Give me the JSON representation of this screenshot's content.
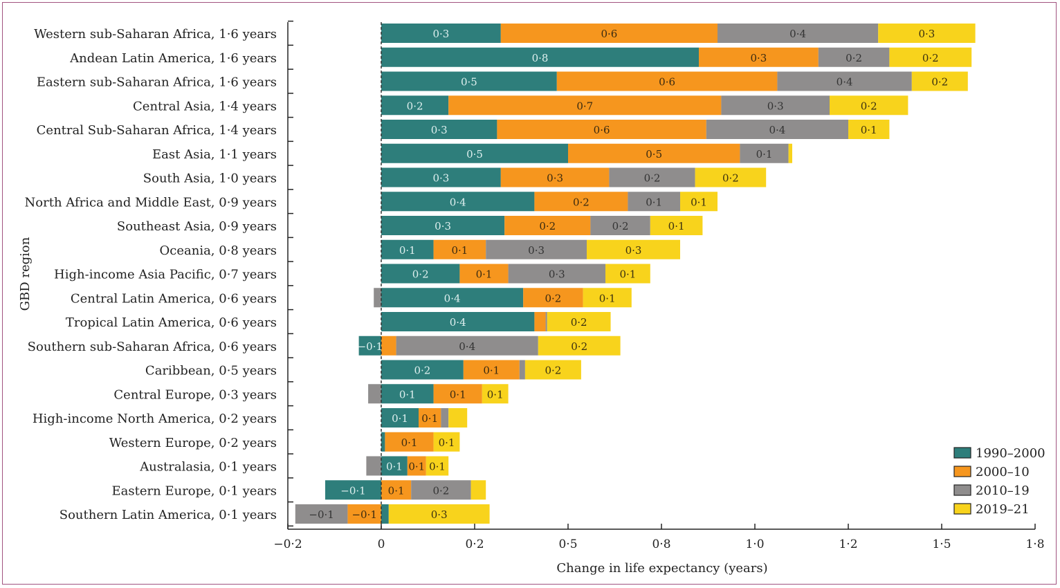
{
  "chart_data": {
    "type": "bar",
    "orientation": "horizontal",
    "stacked": true,
    "xlabel": "Change in life expectancy (years)",
    "ylabel": "GBD region",
    "xlim": [
      -0.25,
      1.75
    ],
    "xticks": [
      -0.25,
      0,
      0.25,
      0.5,
      0.75,
      1.0,
      1.25,
      1.5,
      1.75
    ],
    "xtick_labels": [
      "−0·2",
      "0",
      "0·2",
      "0·5",
      "0·8",
      "1·0",
      "1·2",
      "1·5",
      "1·8"
    ],
    "grid": false,
    "legend_position": "bottom-right",
    "colors": {
      "1990–2000": "#2e7e7b",
      "2000–10": "#f6961e",
      "2010–19": "#8f8d8d",
      "2019–21": "#f8d31c"
    },
    "categories": [
      "Western sub-Saharan Africa, 1·6 years",
      "Andean Latin America, 1·6 years",
      "Eastern sub-Saharan Africa, 1·6 years",
      "Central Asia, 1·4 years",
      "Central Sub-Saharan Africa, 1·4 years",
      "East Asia, 1·1 years",
      "South Asia, 1·0 years",
      "North Africa and Middle East, 0·9 years",
      "Southeast Asia, 0·9 years",
      "Oceania, 0·8 years",
      "High-income Asia Pacific, 0·7 years",
      "Central Latin America, 0·6 years",
      "Tropical Latin America, 0·6 years",
      "Southern sub-Saharan Africa, 0·6 years",
      "Caribbean, 0·5 years",
      "Central Europe, 0·3 years",
      "High-income North America, 0·2 years",
      "Western Europe, 0·2 years",
      "Australasia, 0·1 years",
      "Eastern Europe, 0·1 years",
      "Southern Latin America, 0·1 years"
    ],
    "series": [
      {
        "name": "1990–2000",
        "values": [
          0.32,
          0.85,
          0.47,
          0.18,
          0.31,
          0.5,
          0.32,
          0.41,
          0.33,
          0.14,
          0.21,
          0.38,
          0.41,
          -0.06,
          0.22,
          0.14,
          0.1,
          0.01,
          0.07,
          -0.15,
          0.02
        ],
        "labels": [
          "0·3",
          "0·8",
          "0·5",
          "0·2",
          "0·3",
          "0·5",
          "0·3",
          "0·4",
          "0·3",
          "0·1",
          "0·2",
          "0·4",
          "0·4",
          "−0·1",
          "0·2",
          "0·1",
          "0·1",
          "",
          "0·1",
          "−0·1",
          ""
        ]
      },
      {
        "name": "2000–10",
        "values": [
          0.58,
          0.32,
          0.59,
          0.73,
          0.56,
          0.46,
          0.29,
          0.25,
          0.23,
          0.14,
          0.13,
          0.16,
          0.03,
          0.04,
          0.15,
          0.13,
          0.06,
          0.13,
          0.05,
          0.08,
          -0.09
        ],
        "labels": [
          "0·6",
          "0·3",
          "0·6",
          "0·7",
          "0·6",
          "0·5",
          "0·3",
          "0·2",
          "0·2",
          "0·1",
          "0·1",
          "0·2",
          "",
          "",
          "0·1",
          "0·1",
          "0·1",
          "0·1",
          "0·1",
          "0·1",
          "−0·1"
        ]
      },
      {
        "name": "2010–19",
        "values": [
          0.43,
          0.19,
          0.36,
          0.29,
          0.38,
          0.13,
          0.23,
          0.14,
          0.16,
          0.27,
          0.26,
          -0.02,
          0.004,
          0.38,
          0.015,
          -0.035,
          0.02,
          0,
          -0.04,
          0.16,
          -0.14
        ],
        "labels": [
          "0·4",
          "0·2",
          "0·4",
          "0·3",
          "0·4",
          "0·1",
          "0·2",
          "0·1",
          "0·2",
          "0·3",
          "0·3",
          "",
          "",
          "0·4",
          "",
          "",
          "",
          "",
          "",
          "0·2",
          "−0·1"
        ]
      },
      {
        "name": "2019–21",
        "values": [
          0.26,
          0.22,
          0.15,
          0.21,
          0.11,
          0.01,
          0.19,
          0.1,
          0.14,
          0.25,
          0.12,
          0.13,
          0.17,
          0.22,
          0.15,
          0.07,
          0.05,
          0.07,
          0.06,
          0.04,
          0.27
        ],
        "labels": [
          "0·3",
          "0·2",
          "0·2",
          "0·2",
          "0·1",
          "",
          "0·2",
          "0·1",
          "0·1",
          "0·3",
          "0·1",
          "0·1",
          "0·2",
          "0·2",
          "0·2",
          "0·1",
          "",
          "0·1",
          "0·1",
          "",
          "0·3"
        ]
      }
    ]
  }
}
